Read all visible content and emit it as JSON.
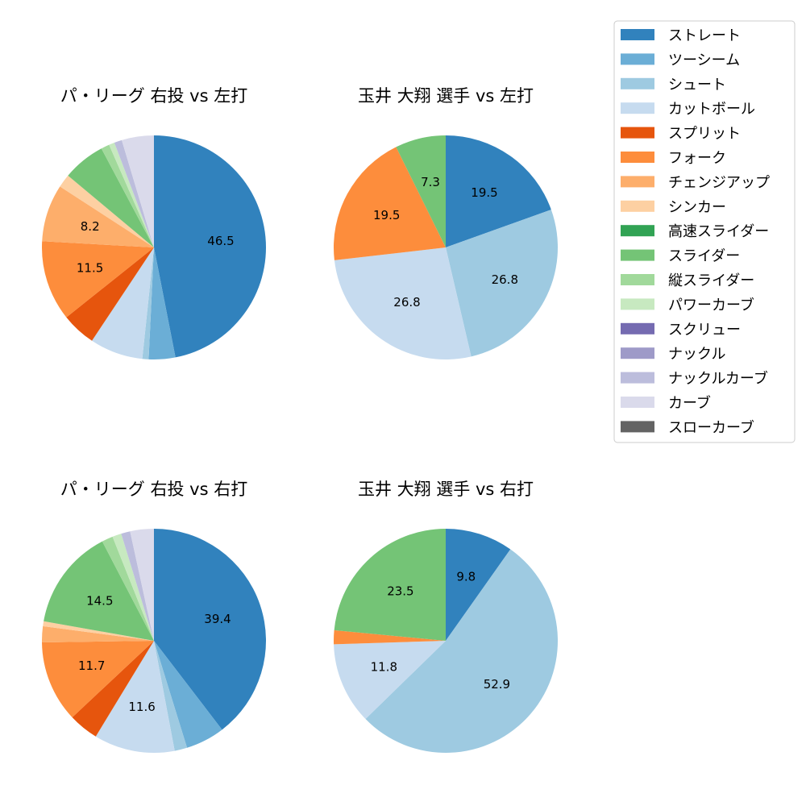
{
  "legend": {
    "items": [
      {
        "name": "ストレート",
        "color": "#3182bd"
      },
      {
        "name": "ツーシーム",
        "color": "#6baed6"
      },
      {
        "name": "シュート",
        "color": "#9ecae1"
      },
      {
        "name": "カットボール",
        "color": "#c6dbef"
      },
      {
        "name": "スプリット",
        "color": "#e6550d"
      },
      {
        "name": "フォーク",
        "color": "#fd8d3c"
      },
      {
        "name": "チェンジアップ",
        "color": "#fdae6b"
      },
      {
        "name": "シンカー",
        "color": "#fdd0a2"
      },
      {
        "name": "高速スライダー",
        "color": "#31a354"
      },
      {
        "name": "スライダー",
        "color": "#74c476"
      },
      {
        "name": "縦スライダー",
        "color": "#a1d99b"
      },
      {
        "name": "パワーカーブ",
        "color": "#c7e9c0"
      },
      {
        "name": "スクリュー",
        "color": "#756bb1"
      },
      {
        "name": "ナックル",
        "color": "#9e9ac8"
      },
      {
        "name": "ナックルカーブ",
        "color": "#bcbddc"
      },
      {
        "name": "カーブ",
        "color": "#dadaeb"
      },
      {
        "name": "スローカーブ",
        "color": "#636363"
      }
    ]
  },
  "chart_data": [
    {
      "type": "pie",
      "title": "パ・リーグ 右投 vs 左打",
      "slices": [
        {
          "label": "ストレート",
          "value": 46.5,
          "text": "46.5"
        },
        {
          "label": "ツーシーム",
          "value": 3.8
        },
        {
          "label": "シュート",
          "value": 0.9
        },
        {
          "label": "カットボール",
          "value": 7.6
        },
        {
          "label": "スプリット",
          "value": 4.9
        },
        {
          "label": "フォーク",
          "value": 11.5,
          "text": "11.5"
        },
        {
          "label": "チェンジアップ",
          "value": 8.2,
          "text": "8.2"
        },
        {
          "label": "シンカー",
          "value": 1.9
        },
        {
          "label": "スライダー",
          "value": 6.1
        },
        {
          "label": "縦スライダー",
          "value": 1.2
        },
        {
          "label": "パワーカーブ",
          "value": 0.8
        },
        {
          "label": "ナックルカーブ",
          "value": 1.1
        },
        {
          "label": "カーブ",
          "value": 4.6
        }
      ]
    },
    {
      "type": "pie",
      "title": "玉井 大翔 選手 vs 左打",
      "slices": [
        {
          "label": "ストレート",
          "value": 19.5,
          "text": "19.5"
        },
        {
          "label": "シュート",
          "value": 26.8,
          "text": "26.8"
        },
        {
          "label": "カットボール",
          "value": 26.8,
          "text": "26.8"
        },
        {
          "label": "フォーク",
          "value": 19.5,
          "text": "19.5"
        },
        {
          "label": "スライダー",
          "value": 7.3,
          "text": "7.3"
        }
      ]
    },
    {
      "type": "pie",
      "title": "パ・リーグ 右投 vs 右打",
      "slices": [
        {
          "label": "ストレート",
          "value": 39.4,
          "text": "39.4"
        },
        {
          "label": "ツーシーム",
          "value": 5.6
        },
        {
          "label": "シュート",
          "value": 1.8
        },
        {
          "label": "カットボール",
          "value": 11.6,
          "text": "11.6"
        },
        {
          "label": "スプリット",
          "value": 4.3
        },
        {
          "label": "フォーク",
          "value": 11.7,
          "text": "11.7"
        },
        {
          "label": "チェンジアップ",
          "value": 2.3
        },
        {
          "label": "シンカー",
          "value": 0.7
        },
        {
          "label": "スライダー",
          "value": 14.5,
          "text": "14.5"
        },
        {
          "label": "縦スライダー",
          "value": 1.6
        },
        {
          "label": "パワーカーブ",
          "value": 1.3
        },
        {
          "label": "ナックルカーブ",
          "value": 1.3
        },
        {
          "label": "カーブ",
          "value": 3.4
        }
      ]
    },
    {
      "type": "pie",
      "title": "玉井 大翔 選手 vs 右打",
      "slices": [
        {
          "label": "ストレート",
          "value": 9.8,
          "text": "9.8"
        },
        {
          "label": "シュート",
          "value": 52.9,
          "text": "52.9"
        },
        {
          "label": "カットボール",
          "value": 11.8,
          "text": "11.8"
        },
        {
          "label": "フォーク",
          "value": 2.0
        },
        {
          "label": "スライダー",
          "value": 23.5,
          "text": "23.5"
        }
      ]
    }
  ]
}
